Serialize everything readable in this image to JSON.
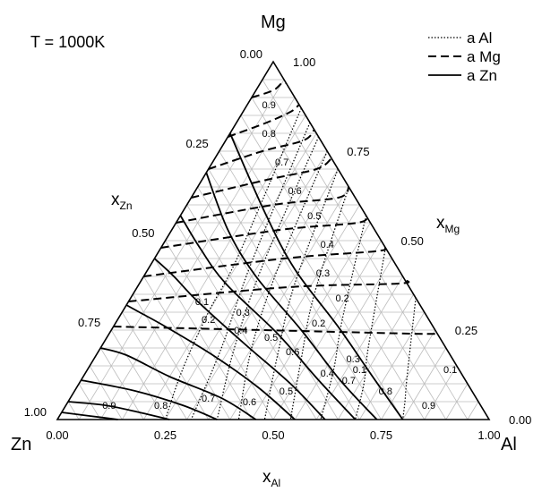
{
  "title": "T = 1000K",
  "chart_data": {
    "type": "ternary",
    "title": "T = 1000K",
    "corners": {
      "top": "Mg",
      "left": "Zn",
      "right": "Al"
    },
    "axes": {
      "x_Al": {
        "label": "x",
        "sub": "Al",
        "ticks": [
          "0.00",
          "0.25",
          "0.50",
          "0.75",
          "1.00"
        ]
      },
      "x_Mg": {
        "label": "x",
        "sub": "Mg",
        "ticks": [
          "0.00",
          "0.25",
          "0.50",
          "0.75",
          "1.00"
        ]
      },
      "x_Zn": {
        "label": "x",
        "sub": "Zn",
        "ticks": [
          "1.00",
          "0.75",
          "0.50",
          "0.25",
          "0.00"
        ]
      }
    },
    "grid": true,
    "legend_position": "top-right",
    "legend": [
      {
        "name": "a Al",
        "style": "dotted"
      },
      {
        "name": "a Mg",
        "style": "dashed"
      },
      {
        "name": "a Zn",
        "style": "solid"
      }
    ],
    "series": [
      {
        "name": "a Al",
        "isolines": [
          {
            "label": "0.1",
            "points": [
              [
                0.13,
                0.87
              ],
              [
                0.19,
                0.46
              ],
              [
                0.2,
                0.3
              ],
              [
                0.22,
                0.14
              ],
              [
                0.25,
                0.0
              ]
            ]
          },
          {
            "label": "0.2",
            "points": [
              [
                0.17,
                0.83
              ],
              [
                0.23,
                0.44
              ],
              [
                0.28,
                0.2
              ],
              [
                0.31,
                0.0
              ]
            ]
          },
          {
            "label": "0.3",
            "points": [
              [
                0.21,
                0.79
              ],
              [
                0.26,
                0.43
              ],
              [
                0.31,
                0.2
              ],
              [
                0.37,
                0.0
              ]
            ]
          },
          {
            "label": "0.4",
            "points": [
              [
                0.25,
                0.75
              ],
              [
                0.3,
                0.42
              ],
              [
                0.35,
                0.2
              ],
              [
                0.42,
                0.0
              ]
            ]
          },
          {
            "label": "0.5",
            "points": [
              [
                0.3,
                0.7
              ],
              [
                0.36,
                0.38
              ],
              [
                0.42,
                0.18
              ],
              [
                0.48,
                0.0
              ]
            ]
          },
          {
            "label": "0.6",
            "points": [
              [
                0.35,
                0.65
              ],
              [
                0.42,
                0.35
              ],
              [
                0.48,
                0.17
              ],
              [
                0.54,
                0.0
              ]
            ]
          },
          {
            "label": "0.7",
            "points": [
              [
                0.43,
                0.57
              ],
              [
                0.52,
                0.28
              ],
              [
                0.57,
                0.14
              ],
              [
                0.61,
                0.0
              ]
            ]
          },
          {
            "label": "0.8",
            "points": [
              [
                0.52,
                0.48
              ],
              [
                0.62,
                0.2
              ],
              [
                0.66,
                0.1
              ],
              [
                0.69,
                0.0
              ]
            ]
          },
          {
            "label": "0.9",
            "points": [
              [
                0.66,
                0.34
              ],
              [
                0.75,
                0.12
              ],
              [
                0.78,
                0.05
              ],
              [
                0.8,
                0.0
              ]
            ]
          }
        ]
      },
      {
        "name": "a Mg",
        "isolines": [
          {
            "label": "0.1",
            "points": [
              [
                0.0,
                0.26
              ],
              [
                0.35,
                0.25
              ],
              [
                0.7,
                0.24
              ],
              [
                0.76,
                0.24
              ]
            ]
          },
          {
            "label": "0.2",
            "points": [
              [
                0.0,
                0.33
              ],
              [
                0.35,
                0.37
              ],
              [
                0.6,
                0.38
              ],
              [
                0.61,
                0.39
              ]
            ]
          },
          {
            "label": "0.3",
            "points": [
              [
                0.0,
                0.4
              ],
              [
                0.3,
                0.45
              ],
              [
                0.5,
                0.47
              ],
              [
                0.52,
                0.48
              ]
            ]
          },
          {
            "label": "0.4",
            "points": [
              [
                0.0,
                0.48
              ],
              [
                0.25,
                0.53
              ],
              [
                0.42,
                0.55
              ],
              [
                0.43,
                0.57
              ]
            ]
          },
          {
            "label": "0.5",
            "points": [
              [
                0.0,
                0.55
              ],
              [
                0.2,
                0.6
              ],
              [
                0.34,
                0.62
              ],
              [
                0.35,
                0.65
              ]
            ]
          },
          {
            "label": "0.6",
            "points": [
              [
                0.0,
                0.62
              ],
              [
                0.15,
                0.67
              ],
              [
                0.25,
                0.7
              ],
              [
                0.27,
                0.73
              ]
            ]
          },
          {
            "label": "0.7",
            "points": [
              [
                0.0,
                0.7
              ],
              [
                0.1,
                0.75
              ],
              [
                0.18,
                0.78
              ],
              [
                0.19,
                0.81
              ]
            ]
          },
          {
            "label": "0.8",
            "points": [
              [
                0.0,
                0.79
              ],
              [
                0.07,
                0.83
              ],
              [
                0.11,
                0.86
              ],
              [
                0.12,
                0.88
              ]
            ]
          },
          {
            "label": "0.9",
            "points": [
              [
                0.0,
                0.9
              ],
              [
                0.04,
                0.92
              ],
              [
                0.05,
                0.94
              ],
              [
                0.06,
                0.94
              ]
            ]
          }
        ]
      },
      {
        "name": "a Zn",
        "isolines": [
          {
            "label": "0.1",
            "points": [
              [
                0.8,
                0.0
              ],
              [
                0.67,
                0.12
              ],
              [
                0.52,
                0.26
              ],
              [
                0.34,
                0.42
              ],
              [
                0.19,
                0.58
              ],
              [
                0.0,
                0.8
              ]
            ]
          },
          {
            "label": "0.2",
            "points": [
              [
                0.74,
                0.0
              ],
              [
                0.6,
                0.11
              ],
              [
                0.44,
                0.25
              ],
              [
                0.26,
                0.4
              ],
              [
                0.13,
                0.53
              ],
              [
                0.0,
                0.69
              ]
            ]
          },
          {
            "label": "0.3",
            "points": [
              [
                0.69,
                0.0
              ],
              [
                0.55,
                0.11
              ],
              [
                0.39,
                0.24
              ],
              [
                0.2,
                0.38
              ],
              [
                0.09,
                0.48
              ],
              [
                0.0,
                0.57
              ]
            ]
          },
          {
            "label": "0.4",
            "points": [
              [
                0.62,
                0.0
              ],
              [
                0.49,
                0.1
              ],
              [
                0.33,
                0.21
              ],
              [
                0.16,
                0.33
              ],
              [
                0.07,
                0.4
              ],
              [
                0.0,
                0.45
              ]
            ]
          },
          {
            "label": "0.5",
            "points": [
              [
                0.55,
                0.0
              ],
              [
                0.42,
                0.09
              ],
              [
                0.27,
                0.18
              ],
              [
                0.12,
                0.26
              ],
              [
                0.04,
                0.3
              ],
              [
                0.0,
                0.32
              ]
            ]
          },
          {
            "label": "0.6",
            "points": [
              [
                0.46,
                0.0
              ],
              [
                0.35,
                0.06
              ],
              [
                0.2,
                0.12
              ],
              [
                0.07,
                0.18
              ],
              [
                0.0,
                0.2
              ]
            ]
          },
          {
            "label": "0.7",
            "points": [
              [
                0.37,
                0.0
              ],
              [
                0.27,
                0.04
              ],
              [
                0.14,
                0.08
              ],
              [
                0.0,
                0.11
              ]
            ]
          },
          {
            "label": "0.8",
            "points": [
              [
                0.26,
                0.0
              ],
              [
                0.18,
                0.02
              ],
              [
                0.09,
                0.04
              ],
              [
                0.0,
                0.05
              ]
            ]
          },
          {
            "label": "0.9",
            "points": [
              [
                0.14,
                0.0
              ],
              [
                0.07,
                0.01
              ],
              [
                0.0,
                0.02
              ]
            ]
          }
        ]
      }
    ],
    "isoline_labels": [
      {
        "series": "a Al",
        "text": "0.1",
        "pos": [
          0.63,
          0.14
        ]
      },
      {
        "series": "a Al",
        "text": "0.2",
        "pos": [
          0.47,
          0.27
        ]
      },
      {
        "series": "a Al",
        "text": "0.3",
        "pos": [
          0.6,
          0.17
        ]
      },
      {
        "series": "a Al",
        "text": "0.4",
        "pos": [
          0.56,
          0.13
        ]
      },
      {
        "series": "a Al",
        "text": "0.5",
        "pos": [
          0.38,
          0.23
        ]
      },
      {
        "series": "a Al",
        "text": "0.6",
        "pos": [
          0.45,
          0.19
        ]
      },
      {
        "series": "a Al",
        "text": "0.7",
        "pos": [
          0.62,
          0.11
        ]
      },
      {
        "series": "a Al",
        "text": "0.8",
        "pos": [
          0.72,
          0.08
        ]
      },
      {
        "series": "a Al",
        "text": "0.9",
        "pos": [
          0.84,
          0.04
        ]
      },
      {
        "series": "a Mg",
        "text": "0.1",
        "pos": [
          0.17,
          0.33
        ]
      },
      {
        "series": "a Mg",
        "text": "0.2",
        "pos": [
          0.49,
          0.34
        ]
      },
      {
        "series": "a Mg",
        "text": "0.3",
        "pos": [
          0.41,
          0.41
        ]
      },
      {
        "series": "a Mg",
        "text": "0.4",
        "pos": [
          0.38,
          0.49
        ]
      },
      {
        "series": "a Mg",
        "text": "0.5",
        "pos": [
          0.31,
          0.57
        ]
      },
      {
        "series": "a Mg",
        "text": "0.6",
        "pos": [
          0.23,
          0.64
        ]
      },
      {
        "series": "a Mg",
        "text": "0.7",
        "pos": [
          0.16,
          0.72
        ]
      },
      {
        "series": "a Mg",
        "text": "0.8",
        "pos": [
          0.09,
          0.8
        ]
      },
      {
        "series": "a Mg",
        "text": "0.9",
        "pos": [
          0.05,
          0.88
        ]
      },
      {
        "series": "a Zn",
        "text": "0.1",
        "pos": [
          0.84,
          0.14
        ]
      },
      {
        "series": "a Zn",
        "text": "0.2",
        "pos": [
          0.21,
          0.28
        ]
      },
      {
        "series": "a Zn",
        "text": "0.3",
        "pos": [
          0.28,
          0.3
        ]
      },
      {
        "series": "a Zn",
        "text": "0.4",
        "pos": [
          0.3,
          0.25
        ]
      },
      {
        "series": "a Zn",
        "text": "0.5",
        "pos": [
          0.49,
          0.08
        ]
      },
      {
        "series": "a Zn",
        "text": "0.6",
        "pos": [
          0.42,
          0.05
        ]
      },
      {
        "series": "a Zn",
        "text": "0.7",
        "pos": [
          0.32,
          0.06
        ]
      },
      {
        "series": "a Zn",
        "text": "0.8",
        "pos": [
          0.22,
          0.04
        ]
      },
      {
        "series": "a Zn",
        "text": "0.9",
        "pos": [
          0.1,
          0.04
        ]
      }
    ]
  }
}
